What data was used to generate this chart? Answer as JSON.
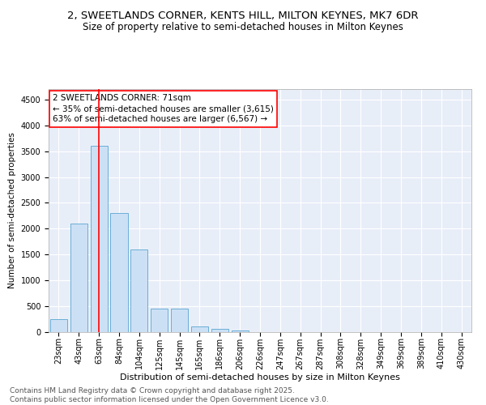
{
  "title1": "2, SWEETLANDS CORNER, KENTS HILL, MILTON KEYNES, MK7 6DR",
  "title2": "Size of property relative to semi-detached houses in Milton Keynes",
  "xlabel": "Distribution of semi-detached houses by size in Milton Keynes",
  "ylabel": "Number of semi-detached properties",
  "categories": [
    "23sqm",
    "43sqm",
    "63sqm",
    "84sqm",
    "104sqm",
    "125sqm",
    "145sqm",
    "165sqm",
    "186sqm",
    "206sqm",
    "226sqm",
    "247sqm",
    "267sqm",
    "287sqm",
    "308sqm",
    "328sqm",
    "349sqm",
    "369sqm",
    "389sqm",
    "410sqm",
    "430sqm"
  ],
  "values": [
    250,
    2100,
    3600,
    2300,
    1600,
    450,
    450,
    110,
    70,
    30,
    5,
    2,
    1,
    0,
    0,
    0,
    0,
    0,
    0,
    0,
    0
  ],
  "bar_color": "#cce0f5",
  "bar_edge_color": "#6aaed6",
  "vline_x_index": 2,
  "vline_color": "red",
  "annotation_text": "2 SWEETLANDS CORNER: 71sqm\n← 35% of semi-detached houses are smaller (3,615)\n63% of semi-detached houses are larger (6,567) →",
  "annotation_box_color": "white",
  "annotation_box_edge": "red",
  "ylim": [
    0,
    4700
  ],
  "yticks": [
    0,
    500,
    1000,
    1500,
    2000,
    2500,
    3000,
    3500,
    4000,
    4500
  ],
  "bg_color": "#e8eef8",
  "footer": "Contains HM Land Registry data © Crown copyright and database right 2025.\nContains public sector information licensed under the Open Government Licence v3.0.",
  "title1_fontsize": 9.5,
  "title2_fontsize": 8.5,
  "xlabel_fontsize": 8,
  "ylabel_fontsize": 7.5,
  "tick_fontsize": 7,
  "annotation_fontsize": 7.5,
  "footer_fontsize": 6.5
}
